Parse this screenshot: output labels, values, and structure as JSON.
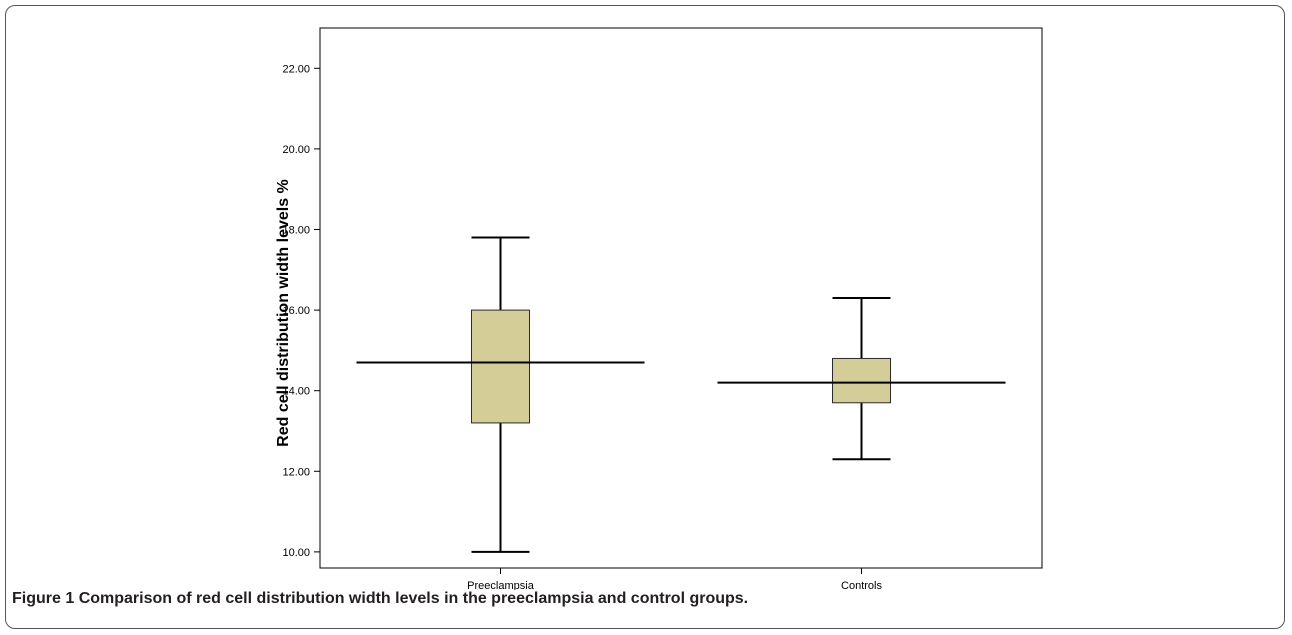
{
  "caption": {
    "label": "Figure 1",
    "text": "Comparison of red cell distribution width levels in the preeclampsia and control groups."
  },
  "colors": {
    "box_fill": "#d4cd98",
    "box_stroke": "#2b2b2b",
    "line": "#000000"
  },
  "chart_data": {
    "type": "boxplot",
    "title": "",
    "xlabel": "",
    "ylabel": "Red cell distribution width levels %",
    "ylim": [
      9.6,
      23.0
    ],
    "yticks": [
      "10.00",
      "12.00",
      "14.00",
      "16.00",
      "18.00",
      "20.00",
      "22.00"
    ],
    "categories": [
      "Preeclampsia",
      "Controls"
    ],
    "boxes": [
      {
        "category": "Preeclampsia",
        "min": 10.0,
        "q1": 13.2,
        "median": 14.7,
        "q3": 16.0,
        "max": 17.8
      },
      {
        "category": "Controls",
        "min": 12.3,
        "q1": 13.7,
        "median": 14.2,
        "q3": 14.8,
        "max": 16.3
      }
    ],
    "grid": false,
    "legend": "none"
  }
}
